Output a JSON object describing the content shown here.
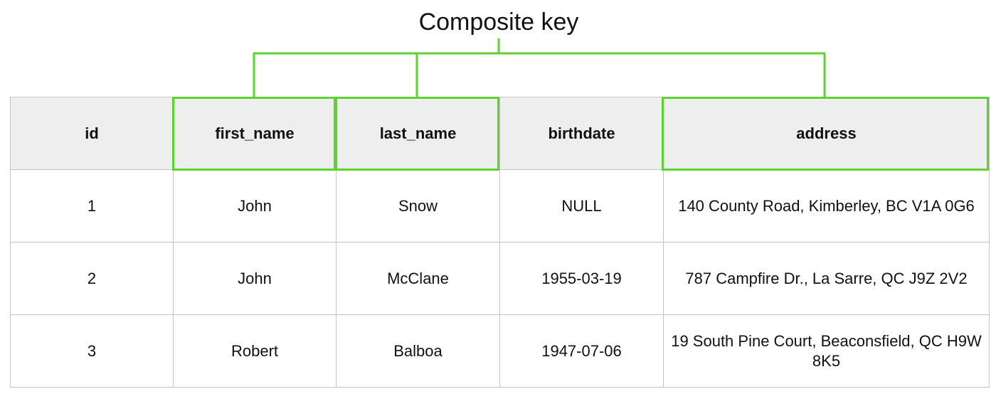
{
  "title": "Composite key",
  "colors": {
    "key_highlight": "#5ed22e",
    "header_bg": "#eeeeee",
    "grid_line": "#c4c4c4"
  },
  "composite_key_columns": [
    "first_name",
    "last_name",
    "address"
  ],
  "table": {
    "headers": [
      "id",
      "first_name",
      "last_name",
      "birthdate",
      "address"
    ],
    "rows": [
      [
        "1",
        "John",
        "Snow",
        "NULL",
        "140 County Road, Kimberley, BC V1A 0G6"
      ],
      [
        "2",
        "John",
        "McClane",
        "1955-03-19",
        "787 Campfire Dr., La Sarre, QC J9Z 2V2"
      ],
      [
        "3",
        "Robert",
        "Balboa",
        "1947-07-06",
        "19 South Pine Court, Beaconsfield, QC H9W 8K5"
      ]
    ]
  }
}
